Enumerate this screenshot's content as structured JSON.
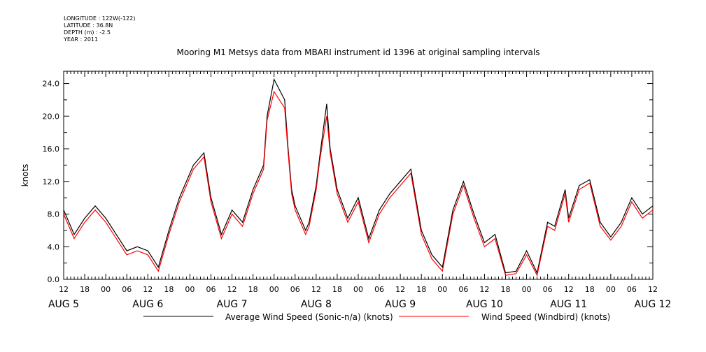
{
  "header_info": {
    "longitude": "LONGITUDE : 122W(-122)",
    "latitude": "LATITUDE : 36.8N",
    "depth": "DEPTH (m) : -2.5",
    "year": "YEAR : 2011"
  },
  "colors": {
    "average_series": "#000000",
    "windbird_series": "#ff0000"
  },
  "chart_data": {
    "type": "line",
    "title": "Mooring M1 Metsys data from MBARI instrument id 1396 at original sampling intervals",
    "ylabel": "knots",
    "xlabel": "",
    "ylim": [
      0,
      25.5
    ],
    "y_ticks": [
      "0.0",
      "4.0",
      "8.0",
      "12.0",
      "16.0",
      "20.0",
      "24.0"
    ],
    "x_range_hours": [
      0,
      168
    ],
    "x_hour_ticks": [
      "12",
      "18",
      "00",
      "06",
      "12",
      "18",
      "00",
      "06",
      "12",
      "18",
      "00",
      "06",
      "12",
      "18",
      "00",
      "06",
      "12",
      "18",
      "00",
      "06",
      "12",
      "18",
      "00",
      "06",
      "12",
      "18",
      "00",
      "06",
      "12"
    ],
    "x_day_labels": [
      "AUG  5",
      "AUG  6",
      "AUG  7",
      "AUG  8",
      "AUG  9",
      "AUG 10",
      "AUG 11",
      "AUG 12"
    ],
    "grid": false,
    "legend_position": "bottom",
    "series": [
      {
        "name": "Average Wind Speed (Sonic-n/a) (knots)",
        "x": [
          0,
          3,
          6,
          9,
          12,
          15,
          18,
          21,
          24,
          27,
          30,
          33,
          36,
          37,
          40,
          42,
          45,
          48,
          51,
          54,
          56,
          57,
          58,
          60,
          63,
          64,
          65,
          66,
          69,
          70,
          72,
          73,
          75,
          76,
          78,
          81,
          84,
          87,
          90,
          93,
          96,
          99,
          102,
          105,
          108,
          111,
          114,
          117,
          120,
          123,
          126,
          129,
          132,
          135,
          138,
          140,
          143,
          144,
          147,
          150,
          153,
          156,
          159,
          162,
          165,
          168
        ],
        "values": [
          8.5,
          5.5,
          7.5,
          9,
          7.5,
          5.5,
          3.5,
          4,
          3.5,
          1.5,
          6,
          10,
          13,
          14,
          15.5,
          10,
          5.5,
          8.5,
          7,
          11,
          13,
          14,
          20,
          24.5,
          22,
          16,
          11,
          9,
          6,
          7,
          11.5,
          15,
          21.5,
          16,
          11,
          7.5,
          10,
          5,
          8.5,
          10.5,
          12,
          13.5,
          6,
          3,
          1.5,
          8.5,
          12,
          8,
          4.5,
          5.5,
          0.8,
          1,
          3.5,
          0.8,
          7,
          6.5,
          11,
          7.5,
          11.5,
          12.2,
          7,
          5.2,
          7,
          10,
          8,
          9
        ]
      },
      {
        "name": "Wind Speed (Windbird) (knots)",
        "x": [
          0,
          3,
          6,
          9,
          12,
          15,
          18,
          21,
          24,
          27,
          30,
          33,
          36,
          37,
          40,
          42,
          45,
          48,
          51,
          54,
          56,
          57,
          58,
          60,
          63,
          64,
          65,
          66,
          69,
          70,
          72,
          73,
          75,
          76,
          78,
          81,
          84,
          87,
          90,
          93,
          96,
          99,
          102,
          105,
          108,
          111,
          114,
          117,
          120,
          123,
          126,
          129,
          132,
          135,
          138,
          140,
          143,
          144,
          147,
          150,
          153,
          156,
          159,
          162,
          165,
          168
        ],
        "values": [
          8,
          5,
          7,
          8.5,
          7,
          5,
          3,
          3.5,
          3,
          1,
          5.5,
          9.5,
          12.5,
          13.5,
          15,
          9.5,
          5,
          8,
          6.5,
          10.5,
          12.5,
          13.5,
          19.5,
          23,
          21,
          15.5,
          10.5,
          8.5,
          5.5,
          6.5,
          11,
          14.5,
          20,
          15.5,
          10.5,
          7,
          9.5,
          4.5,
          8,
          10,
          11.5,
          13,
          5.5,
          2.5,
          1,
          8,
          11.5,
          7.5,
          4,
          5,
          0.5,
          0.7,
          3,
          0.5,
          6.5,
          6,
          10.5,
          7,
          11,
          11.8,
          6.5,
          4.8,
          6.5,
          9.5,
          7.5,
          8.5
        ]
      }
    ]
  }
}
